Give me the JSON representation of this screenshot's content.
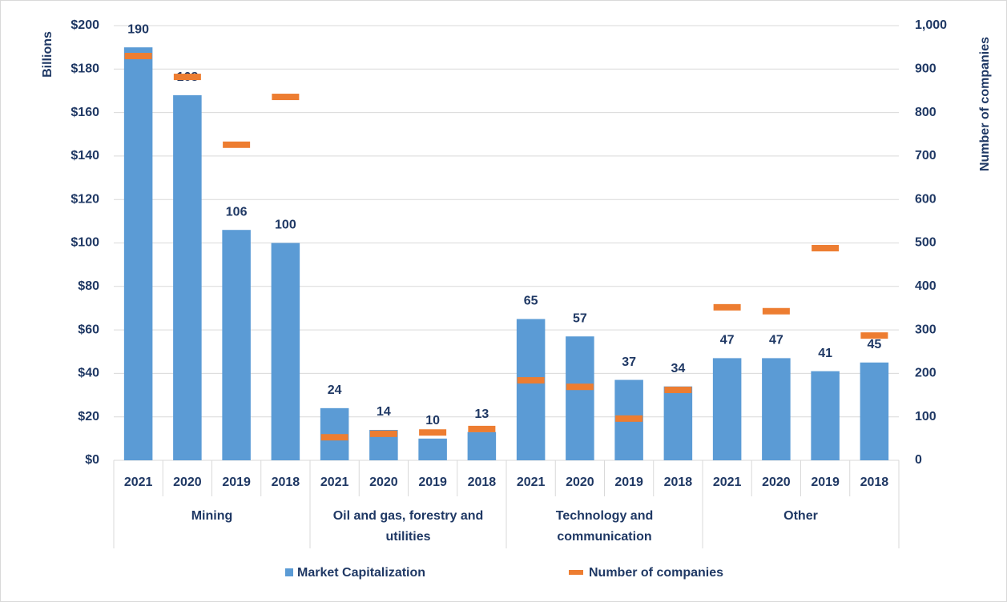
{
  "chart_data": {
    "type": "bar",
    "groups": [
      "Mining",
      "Oil and gas, forestry and utilities",
      "Technology and communication",
      "Other"
    ],
    "categories": [
      "2021",
      "2020",
      "2019",
      "2018",
      "2021",
      "2020",
      "2019",
      "2018",
      "2021",
      "2020",
      "2019",
      "2018",
      "2021",
      "2020",
      "2019",
      "2018"
    ],
    "series": [
      {
        "name": "Market Capitalization",
        "color": "#5b9bd5",
        "type": "bar",
        "values": [
          190,
          168,
          106,
          100,
          24,
          14,
          10,
          13,
          65,
          57,
          37,
          34,
          47,
          47,
          41,
          45
        ]
      },
      {
        "name": "Number of companies",
        "color": "#ed7d31",
        "type": "dash",
        "axis": "y2",
        "values": [
          930,
          882,
          726,
          836,
          53,
          61,
          64,
          72,
          184,
          169,
          96,
          162,
          352,
          343,
          488,
          287
        ]
      }
    ],
    "ylabel": "Billions",
    "y2label": "Number of companies",
    "ylim": [
      0,
      200
    ],
    "yticks": [
      {
        "value": 0,
        "label": "$0"
      },
      {
        "value": 20,
        "label": "$20"
      },
      {
        "value": 40,
        "label": "$40"
      },
      {
        "value": 60,
        "label": "$60"
      },
      {
        "value": 80,
        "label": "$80"
      },
      {
        "value": 100,
        "label": "$100"
      },
      {
        "value": 120,
        "label": "$120"
      },
      {
        "value": 140,
        "label": "$140"
      },
      {
        "value": 160,
        "label": "$160"
      },
      {
        "value": 180,
        "label": "$180"
      },
      {
        "value": 200,
        "label": "$200"
      }
    ],
    "y2lim": [
      0,
      1000
    ],
    "y2ticks": [
      0,
      100,
      200,
      300,
      400,
      500,
      600,
      700,
      800,
      900,
      {
        "value": 1000,
        "label": "1,000"
      }
    ],
    "grid": true,
    "legend": "bottom"
  }
}
